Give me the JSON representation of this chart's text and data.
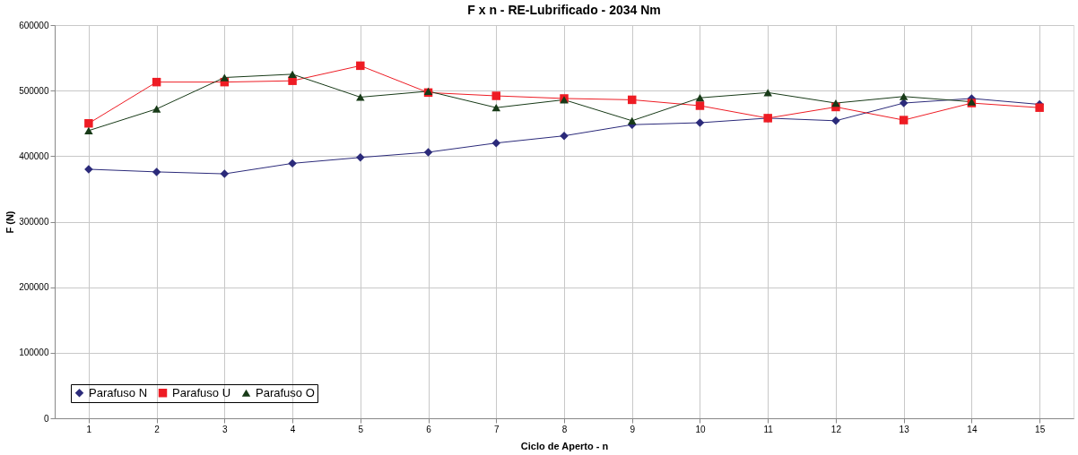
{
  "chart_data": {
    "type": "line",
    "title": "F x n - RE-Lubrificado - 2034 Nm",
    "xlabel": "Ciclo de Aperto - n",
    "ylabel": "F (N)",
    "categories": [
      "1",
      "2",
      "3",
      "4",
      "5",
      "6",
      "7",
      "8",
      "9",
      "10",
      "11",
      "12",
      "13",
      "14",
      "15"
    ],
    "series": [
      {
        "name": "Parafuso N",
        "color": "#2b2a7a",
        "marker": "diamond",
        "values": [
          380000,
          376000,
          373000,
          389000,
          398000,
          406000,
          420000,
          431000,
          448000,
          451000,
          458000,
          454000,
          481000,
          488000,
          479000
        ]
      },
      {
        "name": "Parafuso U",
        "color": "#ee1c24",
        "marker": "square",
        "values": [
          450000,
          513000,
          513000,
          515000,
          538000,
          497000,
          492000,
          488000,
          486000,
          477000,
          458000,
          475000,
          455000,
          481000,
          474000
        ]
      },
      {
        "name": "Parafuso O",
        "color": "#173a17",
        "marker": "triangle",
        "values": [
          439000,
          472000,
          520000,
          525000,
          490000,
          499000,
          474000,
          486000,
          454000,
          489000,
          497000,
          481000,
          491000,
          483000,
          null
        ]
      }
    ],
    "ylim": [
      0,
      600000
    ],
    "yticks": [
      0,
      100000,
      200000,
      300000,
      400000,
      500000,
      600000
    ],
    "grid": true,
    "legend": "bottom left",
    "line_style": "solid"
  }
}
